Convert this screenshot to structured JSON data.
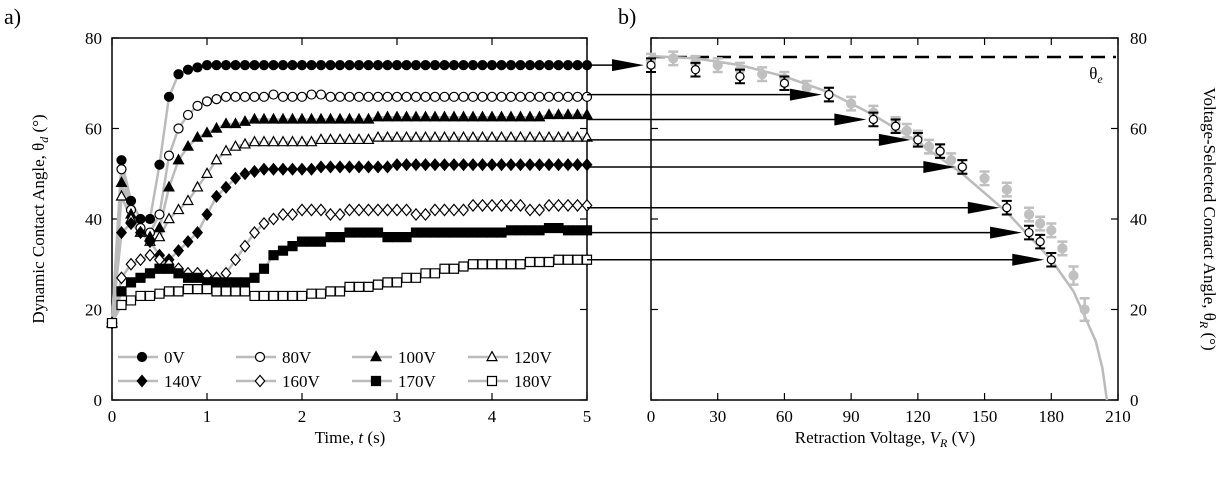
{
  "panel_labels": [
    "a)",
    "b)"
  ],
  "chart_data": [
    {
      "type": "line",
      "xlabel": [
        "Time, ",
        "t",
        " (s)"
      ],
      "ylabel": [
        "Dynamic Contact Angle, θ",
        "d",
        " (°)"
      ],
      "xlim": [
        0,
        5
      ],
      "xticks": [
        0,
        1,
        2,
        3,
        4,
        5
      ],
      "ylim": [
        0,
        80
      ],
      "yticks": [
        0,
        20,
        40,
        60,
        80
      ],
      "line_color": "#bbbbbb",
      "x": [
        0,
        0.1,
        0.2,
        0.3,
        0.4,
        0.5,
        0.6,
        0.7,
        0.8,
        0.9,
        1,
        1.1,
        1.2,
        1.3,
        1.4,
        1.5,
        1.6,
        1.7,
        1.8,
        1.9,
        2,
        2.1,
        2.2,
        2.3,
        2.4,
        2.5,
        2.6,
        2.7,
        2.8,
        2.9,
        3,
        3.1,
        3.2,
        3.3,
        3.4,
        3.5,
        3.6,
        3.7,
        3.8,
        3.9,
        4,
        4.1,
        4.2,
        4.3,
        4.4,
        4.5,
        4.6,
        4.7,
        4.8,
        4.9,
        5
      ],
      "series": [
        {
          "name": "0V",
          "color": "#000000",
          "marker": "circle",
          "filled": true,
          "values": [
            17,
            53,
            44,
            40,
            40,
            52,
            67,
            72,
            73,
            73.5,
            74,
            74,
            74,
            74,
            74,
            74,
            74,
            74,
            74,
            74,
            74,
            74,
            74,
            74,
            74,
            74,
            74,
            74,
            74,
            74,
            74,
            74,
            74,
            74,
            74,
            74,
            74,
            74,
            74,
            74,
            74,
            74,
            74,
            74,
            74,
            74,
            74,
            74,
            74,
            74,
            74
          ]
        },
        {
          "name": "80V",
          "color": "#000000",
          "marker": "circle",
          "filled": false,
          "values": [
            17,
            51,
            42,
            38,
            37,
            41,
            54,
            60,
            63,
            65,
            66,
            66.5,
            67,
            67,
            67,
            67,
            67,
            67.5,
            67,
            67,
            67,
            67.5,
            67.5,
            67,
            67,
            67,
            67,
            67,
            67,
            67,
            67,
            67,
            67,
            67,
            67,
            67,
            67,
            67,
            67,
            67,
            67,
            67,
            67,
            67,
            67,
            67,
            67,
            67,
            67,
            67,
            67
          ]
        },
        {
          "name": "100V",
          "color": "#000000",
          "marker": "triangle",
          "filled": true,
          "values": [
            17,
            48,
            41,
            37,
            36,
            38,
            47,
            53,
            56,
            58,
            59,
            60,
            61,
            61,
            61.5,
            62,
            62,
            62,
            62,
            62,
            62,
            62,
            62,
            62,
            62,
            62,
            62,
            62,
            62.5,
            62.5,
            62.5,
            62.5,
            62.5,
            62.5,
            62.5,
            62.5,
            62.5,
            62.5,
            62.5,
            62.5,
            62.5,
            62.5,
            62.5,
            62.5,
            62.5,
            62.5,
            63,
            63,
            63,
            63,
            63
          ]
        },
        {
          "name": "120V",
          "color": "#000000",
          "marker": "triangle",
          "filled": false,
          "values": [
            17,
            45,
            40,
            37,
            35,
            36,
            40,
            42,
            44,
            47,
            50,
            53,
            55,
            56,
            56.5,
            57,
            57,
            57,
            57,
            57,
            57,
            57,
            57.5,
            57.5,
            57.5,
            57.5,
            57.5,
            57.5,
            58,
            58,
            58,
            58,
            58,
            58,
            58,
            58,
            58,
            58,
            58,
            58,
            58,
            58,
            58,
            58,
            58,
            58,
            58,
            58,
            58,
            58,
            58
          ]
        },
        {
          "name": "140V",
          "color": "#000000",
          "marker": "diamond",
          "filled": true,
          "values": [
            17,
            37,
            39,
            37,
            35,
            32,
            31,
            33,
            35,
            37,
            41,
            45,
            47,
            49,
            50,
            50.5,
            51,
            51,
            51,
            51,
            51,
            51,
            51.5,
            51.5,
            51.5,
            51.5,
            51.5,
            51.5,
            51.5,
            51.5,
            52,
            52,
            52,
            52,
            52,
            52,
            52,
            52,
            52,
            52,
            52,
            52,
            52,
            52,
            52,
            52,
            52,
            52,
            52,
            52,
            52
          ]
        },
        {
          "name": "160V",
          "color": "#000000",
          "marker": "diamond",
          "filled": false,
          "values": [
            17,
            27,
            30,
            31,
            32,
            31,
            30,
            29,
            28,
            28,
            27.5,
            27,
            28,
            31,
            34,
            37,
            39,
            40,
            41,
            41,
            42,
            42,
            42,
            41,
            41,
            42,
            42,
            42,
            42,
            42,
            42,
            42,
            41,
            41,
            42,
            42,
            42,
            42,
            43,
            43,
            43,
            43,
            43,
            43,
            42,
            42,
            43,
            43,
            43,
            43,
            43
          ]
        },
        {
          "name": "170V",
          "color": "#000000",
          "marker": "square",
          "filled": true,
          "values": [
            17,
            24,
            26,
            27,
            28,
            29,
            29,
            28,
            27,
            27,
            26,
            26,
            26,
            26,
            26,
            27,
            29,
            32,
            33,
            34,
            35,
            35,
            35,
            36,
            36,
            37,
            37,
            37,
            37,
            36,
            36,
            36,
            37,
            37,
            37,
            37,
            37,
            37,
            37,
            37,
            37,
            37,
            37.5,
            37.5,
            37.5,
            37.5,
            38,
            38,
            37.5,
            37.5,
            37.5
          ]
        },
        {
          "name": "180V",
          "color": "#000000",
          "marker": "square",
          "filled": false,
          "values": [
            17,
            21,
            22,
            23,
            23,
            23.5,
            24,
            24,
            24.5,
            24.5,
            24.5,
            24,
            24,
            24,
            24,
            23,
            23,
            23,
            23,
            23,
            23,
            23.5,
            23.5,
            24,
            24,
            25,
            25,
            25,
            25.5,
            26,
            26,
            27,
            27,
            28,
            28,
            29,
            29,
            29.5,
            30,
            30,
            30,
            30,
            30,
            30,
            30.5,
            30.5,
            30.5,
            31,
            31,
            31,
            31
          ]
        }
      ]
    },
    {
      "type": "scatter",
      "xlabel": [
        "Retraction Voltage, ",
        "V",
        "R",
        " (V)"
      ],
      "ylabel": [
        "Voltage-Selected Contact Angle, θ",
        "R",
        " (°)"
      ],
      "xlim": [
        0,
        210
      ],
      "xticks": [
        0,
        30,
        60,
        90,
        120,
        150,
        180,
        210
      ],
      "ylim": [
        0,
        80
      ],
      "yticks": [
        0,
        20,
        40,
        60,
        80
      ],
      "fit": {
        "color": "#bbbbbb",
        "x": [
          0,
          20,
          40,
          60,
          80,
          100,
          120,
          140,
          160,
          180,
          190,
          200,
          203,
          205
        ],
        "values": [
          76,
          75.5,
          74,
          71.5,
          68,
          63,
          57,
          50,
          41.5,
          31,
          24,
          13,
          7,
          0
        ]
      },
      "reference": {
        "value": 75.8,
        "label": [
          "θ",
          "e"
        ]
      },
      "series": [
        {
          "color": "#c0c0c0",
          "marker": "circle",
          "filled": true,
          "x": [
            0,
            10,
            20,
            30,
            40,
            50,
            60,
            70,
            80,
            90,
            100,
            110,
            115,
            120,
            125,
            130,
            135,
            140,
            150,
            160,
            170,
            175,
            180,
            185,
            190,
            195
          ],
          "values": [
            75,
            75.5,
            74.5,
            74,
            73,
            72,
            71,
            69,
            67.5,
            65.5,
            63.5,
            61,
            59.5,
            58,
            56,
            55,
            53,
            51.5,
            49,
            46.5,
            41,
            39,
            37.5,
            33.5,
            27.5,
            20
          ],
          "errors": [
            1.5,
            1.5,
            1.5,
            1.5,
            1.5,
            1.5,
            1.5,
            1.5,
            1.5,
            1.5,
            1.5,
            1.5,
            1.5,
            1.5,
            1.5,
            1.5,
            1.5,
            1.5,
            1.5,
            1.5,
            1.5,
            1.5,
            1.5,
            1.5,
            2,
            2.5
          ]
        },
        {
          "color": "#000000",
          "marker": "circle",
          "filled": false,
          "x": [
            0,
            20,
            40,
            60,
            80,
            100,
            110,
            120,
            130,
            140,
            160,
            170,
            175,
            180
          ],
          "values": [
            74,
            73,
            71.5,
            70,
            67.5,
            62,
            60.5,
            57.5,
            55,
            51.5,
            42.5,
            37,
            35,
            31
          ],
          "errors": [
            1.5,
            1.5,
            1.5,
            1.5,
            1.5,
            1.5,
            1.5,
            1.5,
            1.5,
            1.5,
            1.5,
            1.5,
            1.5,
            1.5
          ]
        }
      ]
    }
  ]
}
